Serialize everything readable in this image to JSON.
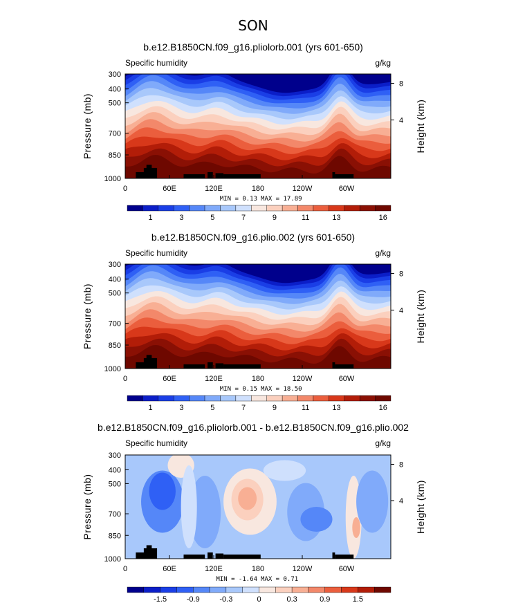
{
  "figure_title": "SON",
  "chart_data": [
    {
      "type": "heatmap",
      "title": "b.e12.B1850CN.f09_g16.pliolorb.001 (yrs 601-650)",
      "left_label": "Specific humidity",
      "units": "g/kg",
      "ylabel": "Pressure (mb)",
      "ylabel_right": "Height (km)",
      "x_ticks": [
        "0",
        "60E",
        "120E",
        "180",
        "120W",
        "60W"
      ],
      "y_ticks": [
        "300",
        "400",
        "500",
        "700",
        "850",
        "1000"
      ],
      "y_ticks_right": [
        "8",
        "4"
      ],
      "min_text": "MIN =    0.13",
      "max_text": "MAX =   17.89",
      "min": 0.13,
      "max": 17.89,
      "colorbar_labels": [
        "1",
        "3",
        "5",
        "7",
        "9",
        "11",
        "13",
        "16"
      ],
      "palette": [
        "#00008c",
        "#0b1ec8",
        "#1a3ee6",
        "#2f60f5",
        "#5587f8",
        "#80aafa",
        "#a8c8fb",
        "#cfe0fd",
        "#f8e7df",
        "#fbd0be",
        "#f8af94",
        "#f3886a",
        "#eb5e3d",
        "#d8381a",
        "#b21d08",
        "#8a1004",
        "#6e0800"
      ]
    },
    {
      "type": "heatmap",
      "title": "b.e12.B1850CN.f09_g16.plio.002 (yrs 601-650)",
      "left_label": "Specific humidity",
      "units": "g/kg",
      "ylabel": "Pressure (mb)",
      "ylabel_right": "Height (km)",
      "x_ticks": [
        "0",
        "60E",
        "120E",
        "180",
        "120W",
        "60W"
      ],
      "y_ticks": [
        "300",
        "400",
        "500",
        "700",
        "850",
        "1000"
      ],
      "y_ticks_right": [
        "8",
        "4"
      ],
      "min_text": "MIN =    0.15",
      "max_text": "MAX =   18.50",
      "min": 0.15,
      "max": 18.5,
      "colorbar_labels": [
        "1",
        "3",
        "5",
        "7",
        "9",
        "11",
        "13",
        "16"
      ],
      "palette": [
        "#00008c",
        "#0b1ec8",
        "#1a3ee6",
        "#2f60f5",
        "#5587f8",
        "#80aafa",
        "#a8c8fb",
        "#cfe0fd",
        "#f8e7df",
        "#fbd0be",
        "#f8af94",
        "#f3886a",
        "#eb5e3d",
        "#d8381a",
        "#b21d08",
        "#8a1004",
        "#6e0800"
      ]
    },
    {
      "type": "heatmap",
      "title": "b.e12.B1850CN.f09_g16.pliolorb.001 - b.e12.B1850CN.f09_g16.plio.002",
      "left_label": "Specific humidity",
      "units": "g/kg",
      "ylabel": "Pressure (mb)",
      "ylabel_right": "Height (km)",
      "x_ticks": [
        "0",
        "60E",
        "120E",
        "180",
        "120W",
        "60W"
      ],
      "y_ticks": [
        "300",
        "400",
        "500",
        "700",
        "850",
        "1000"
      ],
      "y_ticks_right": [
        "8",
        "4"
      ],
      "min_text": "MIN =   -1.64",
      "max_text": "MAX =    0.71",
      "min": -1.64,
      "max": 0.71,
      "colorbar_labels": [
        "-1.5",
        "-0.9",
        "-0.3",
        "0",
        "0.3",
        "0.9",
        "1.5"
      ],
      "palette": [
        "#00008c",
        "#0b1ec8",
        "#1a3ee6",
        "#2f60f5",
        "#5587f8",
        "#80aafa",
        "#a8c8fb",
        "#cfe0fd",
        "#f8e7df",
        "#fbd0be",
        "#f8af94",
        "#f3886a",
        "#eb5e3d",
        "#d8381a",
        "#b21d08",
        "#6e0800"
      ]
    }
  ]
}
